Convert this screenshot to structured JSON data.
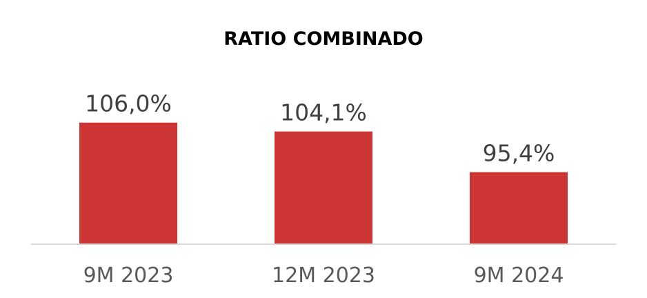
{
  "chart_data": {
    "type": "bar",
    "title": "RATIO COMBINADO",
    "xlabel": "",
    "ylabel": "",
    "categories": [
      "9M 2023",
      "12M 2023",
      "9M 2024"
    ],
    "values": [
      106.0,
      104.1,
      95.4
    ],
    "data_labels": [
      "106,0%",
      "104,1%",
      "95,4%"
    ],
    "ylim": [
      80,
      110
    ],
    "grid": false,
    "legend": "none",
    "colors": {
      "bar": "#cd3434",
      "axis": "#d9d9d9",
      "title": "#000000",
      "data_label": "#404040",
      "category_label": "#595959"
    }
  }
}
